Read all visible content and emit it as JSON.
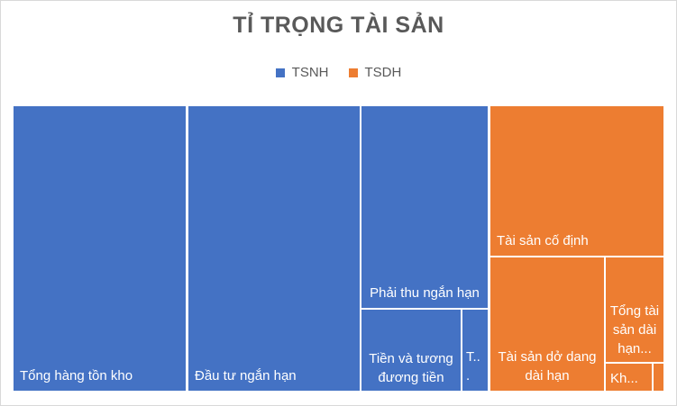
{
  "chart_data": {
    "type": "treemap",
    "title": "TỈ TRỌNG TÀI SẢN",
    "legend": {
      "placement": "top",
      "entries": [
        {
          "name": "TSNH",
          "color": "#4472C4"
        },
        {
          "name": "TSDH",
          "color": "#ED7D31"
        }
      ]
    },
    "series": [
      {
        "name": "TSNH",
        "color": "#4472C4",
        "items": [
          {
            "label": "Tổng hàng tồn kho",
            "value": 64.0
          },
          {
            "label": "Đầu tư ngắn hạn",
            "value": 63.0
          },
          {
            "label": "Phải thu ngắn hạn",
            "value": 22.0
          },
          {
            "label": "Tiền và tương đương tiền",
            "value": 10.0
          },
          {
            "label": "T...",
            "value": 2.5
          }
        ]
      },
      {
        "name": "TSDH",
        "color": "#ED7D31",
        "items": [
          {
            "label": "Tài sản cố định",
            "value": 28.0
          },
          {
            "label": "Tài sản dở dang dài hạn",
            "value": 20.0
          },
          {
            "label": "Tổng tài sản dài hạn...",
            "value": 8.0
          },
          {
            "label": "Kh...",
            "value": 1.8
          },
          {
            "label": "",
            "value": 0.4
          }
        ]
      }
    ]
  }
}
